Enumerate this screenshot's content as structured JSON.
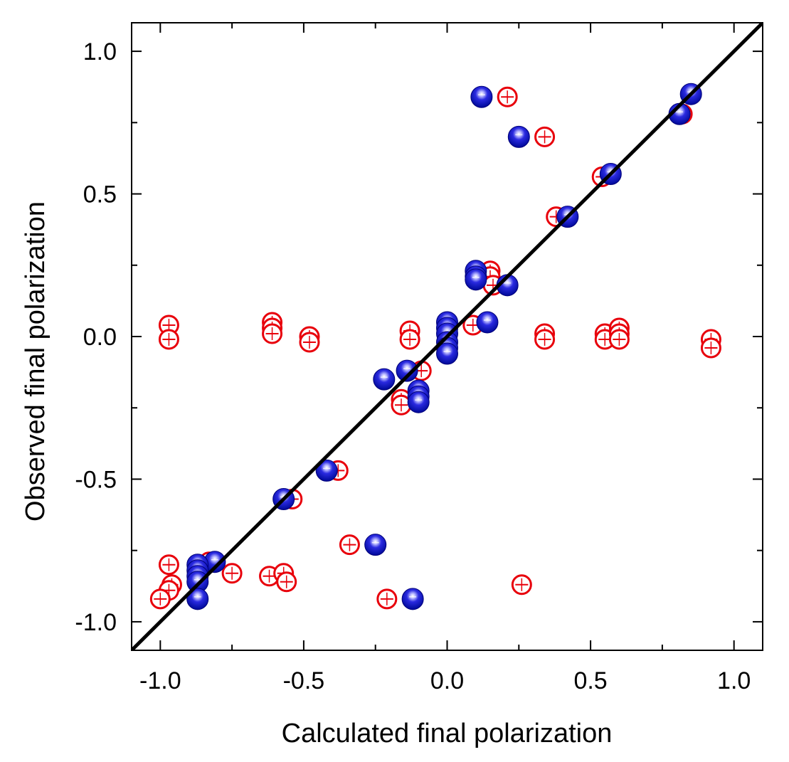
{
  "chart_data": {
    "type": "scatter",
    "title": "",
    "xlabel": "Calculated final polarization",
    "ylabel": "Observed final polarization",
    "xlim": [
      -1.1,
      1.1
    ],
    "ylim": [
      -1.1,
      1.1
    ],
    "xticks": [
      -1.0,
      -0.5,
      0.0,
      0.5,
      1.0
    ],
    "yticks": [
      -1.0,
      -0.5,
      0.0,
      0.5,
      1.0
    ],
    "xtick_labels": [
      "-1.0",
      "-0.5",
      "0.0",
      "0.5",
      "1.0"
    ],
    "ytick_labels": [
      "-1.0",
      "-0.5",
      "0.0",
      "0.5",
      "1.0"
    ],
    "grid": false,
    "reference_line": {
      "name": "y = x",
      "color": "#000000",
      "points": [
        [
          -1.1,
          -1.1
        ],
        [
          1.1,
          1.1
        ]
      ]
    },
    "series": [
      {
        "name": "open circles",
        "marker": "open-circle",
        "color": "#e8000b",
        "points": [
          [
            0.21,
            0.84
          ],
          [
            0.34,
            0.7
          ],
          [
            0.54,
            0.56
          ],
          [
            0.82,
            0.78
          ],
          [
            0.85,
            0.85
          ],
          [
            0.38,
            0.42
          ],
          [
            0.15,
            0.23
          ],
          [
            0.15,
            0.21
          ],
          [
            0.16,
            0.18
          ],
          [
            -0.97,
            0.04
          ],
          [
            -0.97,
            -0.01
          ],
          [
            -0.61,
            0.05
          ],
          [
            -0.61,
            0.03
          ],
          [
            -0.61,
            0.01
          ],
          [
            -0.48,
            0.0
          ],
          [
            -0.48,
            -0.02
          ],
          [
            -0.13,
            0.02
          ],
          [
            -0.13,
            -0.01
          ],
          [
            0.09,
            0.04
          ],
          [
            0.34,
            0.01
          ],
          [
            0.34,
            -0.01
          ],
          [
            0.55,
            0.01
          ],
          [
            0.55,
            -0.01
          ],
          [
            0.6,
            0.03
          ],
          [
            0.6,
            0.01
          ],
          [
            0.6,
            -0.01
          ],
          [
            0.92,
            -0.01
          ],
          [
            0.92,
            -0.04
          ],
          [
            -0.09,
            -0.12
          ],
          [
            -0.16,
            -0.22
          ],
          [
            -0.16,
            -0.24
          ],
          [
            -0.38,
            -0.47
          ],
          [
            -0.54,
            -0.57
          ],
          [
            -0.34,
            -0.73
          ],
          [
            -0.21,
            -0.92
          ],
          [
            0.26,
            -0.87
          ],
          [
            -0.75,
            -0.83
          ],
          [
            -0.62,
            -0.84
          ],
          [
            -0.57,
            -0.83
          ],
          [
            -0.56,
            -0.86
          ],
          [
            -0.97,
            -0.8
          ],
          [
            -0.96,
            -0.87
          ],
          [
            -0.97,
            -0.89
          ],
          [
            -1.0,
            -0.92
          ],
          [
            -0.83,
            -0.79
          ]
        ]
      },
      {
        "name": "filled circles",
        "marker": "filled-sphere",
        "color": "#1010c8",
        "points": [
          [
            0.12,
            0.84
          ],
          [
            0.25,
            0.7
          ],
          [
            0.57,
            0.57
          ],
          [
            0.85,
            0.85
          ],
          [
            0.81,
            0.78
          ],
          [
            0.42,
            0.42
          ],
          [
            0.1,
            0.23
          ],
          [
            0.1,
            0.21
          ],
          [
            0.1,
            0.2
          ],
          [
            0.21,
            0.18
          ],
          [
            0.14,
            0.05
          ],
          [
            0.0,
            0.05
          ],
          [
            0.0,
            0.03
          ],
          [
            0.0,
            0.01
          ],
          [
            0.0,
            -0.02
          ],
          [
            0.0,
            -0.04
          ],
          [
            0.0,
            -0.06
          ],
          [
            -0.14,
            -0.12
          ],
          [
            -0.22,
            -0.15
          ],
          [
            -0.1,
            -0.19
          ],
          [
            -0.1,
            -0.21
          ],
          [
            -0.1,
            -0.23
          ],
          [
            -0.42,
            -0.47
          ],
          [
            -0.57,
            -0.57
          ],
          [
            -0.25,
            -0.73
          ],
          [
            -0.12,
            -0.92
          ],
          [
            -0.81,
            -0.79
          ],
          [
            -0.87,
            -0.8
          ],
          [
            -0.87,
            -0.82
          ],
          [
            -0.87,
            -0.84
          ],
          [
            -0.87,
            -0.86
          ],
          [
            -0.87,
            -0.92
          ]
        ]
      }
    ]
  }
}
